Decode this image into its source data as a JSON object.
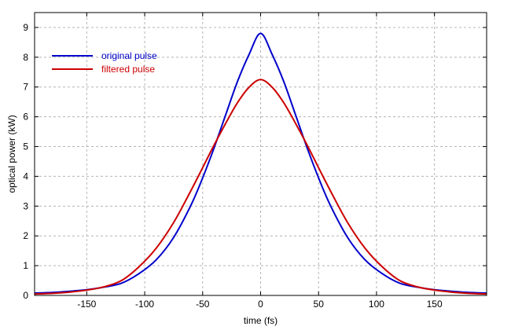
{
  "chart_data": {
    "type": "line",
    "title": "",
    "xlabel": "time (fs)",
    "ylabel": "optical power (kW)",
    "xlim": [
      -195,
      195
    ],
    "ylim": [
      0,
      9.5
    ],
    "xticks": [
      -150,
      -100,
      -50,
      0,
      50,
      100,
      150
    ],
    "yticks": [
      0,
      1,
      2,
      3,
      4,
      5,
      6,
      7,
      8,
      9
    ],
    "grid": true,
    "legend_position": "top-left",
    "series": [
      {
        "name": "original pulse",
        "color": "#0000cc",
        "x": [
          -195,
          -180,
          -165,
          -150,
          -135,
          -120,
          -105,
          -90,
          -75,
          -60,
          -50,
          -40,
          -30,
          -20,
          -10,
          0,
          10,
          20,
          30,
          40,
          50,
          60,
          75,
          90,
          105,
          120,
          135,
          150,
          165,
          180,
          195
        ],
        "y": [
          0.08,
          0.1,
          0.14,
          0.19,
          0.28,
          0.41,
          0.73,
          1.2,
          1.95,
          3.04,
          3.95,
          4.97,
          6.08,
          7.18,
          8.09,
          8.8,
          8.09,
          7.18,
          6.08,
          4.97,
          3.95,
          3.04,
          1.95,
          1.2,
          0.73,
          0.41,
          0.28,
          0.19,
          0.14,
          0.1,
          0.08
        ]
      },
      {
        "name": "filtered pulse",
        "color": "#cc0000",
        "x": [
          -195,
          -180,
          -165,
          -150,
          -135,
          -120,
          -105,
          -90,
          -75,
          -60,
          -50,
          -40,
          -30,
          -20,
          -10,
          0,
          10,
          20,
          30,
          40,
          50,
          60,
          75,
          90,
          105,
          120,
          135,
          150,
          165,
          180,
          195
        ],
        "y": [
          0.05,
          0.07,
          0.11,
          0.18,
          0.29,
          0.5,
          0.96,
          1.59,
          2.45,
          3.53,
          4.29,
          5.06,
          5.79,
          6.47,
          6.99,
          7.25,
          6.99,
          6.47,
          5.79,
          5.06,
          4.29,
          3.53,
          2.45,
          1.59,
          0.96,
          0.5,
          0.29,
          0.18,
          0.11,
          0.07,
          0.05
        ]
      }
    ]
  }
}
